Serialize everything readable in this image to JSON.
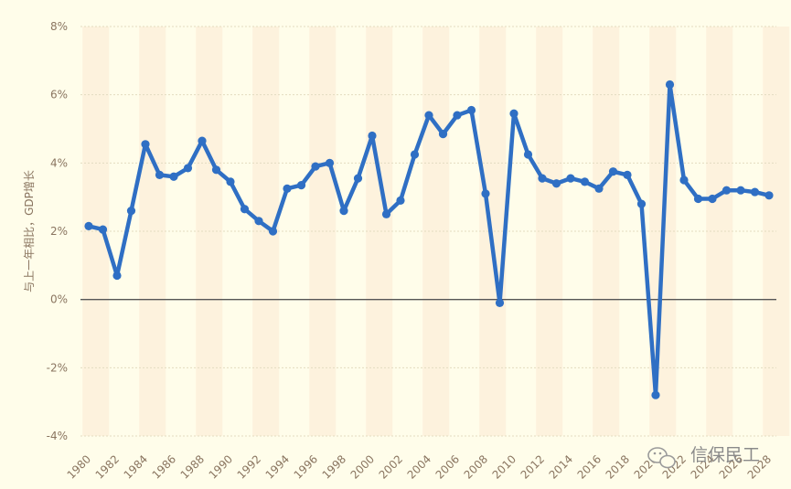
{
  "chart_data": {
    "type": "line",
    "title": "",
    "xlabel": "",
    "ylabel": "与上一年相比，GDP增长",
    "ylim": [
      -4,
      8
    ],
    "y_ticks": [
      "8%",
      "6%",
      "4%",
      "2%",
      "0%",
      "-2%",
      "-4%"
    ],
    "x_range": [
      1980,
      2028
    ],
    "x_ticks": [
      "1980",
      "1982",
      "1984",
      "1986",
      "1988",
      "1990",
      "1992",
      "1994",
      "1996",
      "1998",
      "2000",
      "2002",
      "2004",
      "2006",
      "2008",
      "2010",
      "2012",
      "2014",
      "2016",
      "2018",
      "2020",
      "2022",
      "2024",
      "2026",
      "2028"
    ],
    "grid": true,
    "legend": "none",
    "series": [
      {
        "x": [
          1980,
          1981,
          1982,
          1983,
          1984,
          1985,
          1986,
          1987,
          1988,
          1989,
          1990,
          1991,
          1992,
          1993,
          1994,
          1995,
          1996,
          1997,
          1998,
          1999,
          2000,
          2001,
          2002,
          2003,
          2004,
          2005,
          2006,
          2007,
          2008,
          2009,
          2010,
          2011,
          2012,
          2013,
          2014,
          2015,
          2016,
          2017,
          2018,
          2019,
          2020,
          2021,
          2022,
          2023,
          2024,
          2025,
          2026,
          2027,
          2028
        ],
        "values": [
          2.15,
          2.05,
          0.7,
          2.6,
          4.55,
          3.65,
          3.6,
          3.85,
          4.65,
          3.8,
          3.45,
          2.65,
          2.3,
          2.0,
          3.25,
          3.35,
          3.9,
          4.0,
          2.6,
          3.55,
          4.8,
          2.5,
          2.9,
          4.25,
          5.4,
          4.85,
          5.4,
          5.55,
          3.1,
          -0.1,
          5.45,
          4.25,
          3.55,
          3.4,
          3.55,
          3.45,
          3.25,
          3.75,
          3.65,
          2.8,
          -2.8,
          6.3,
          3.5,
          2.95,
          2.95,
          3.2,
          3.2,
          3.15,
          3.05
        ]
      }
    ],
    "colors": {
      "background": "#fffdea",
      "band": "#fdf2dd",
      "line": "#2f6fc4",
      "zero_line": "#555555",
      "grid": "#e3dcc0"
    }
  },
  "watermark": {
    "text": "信保民工",
    "icon": "wechat-icon"
  }
}
